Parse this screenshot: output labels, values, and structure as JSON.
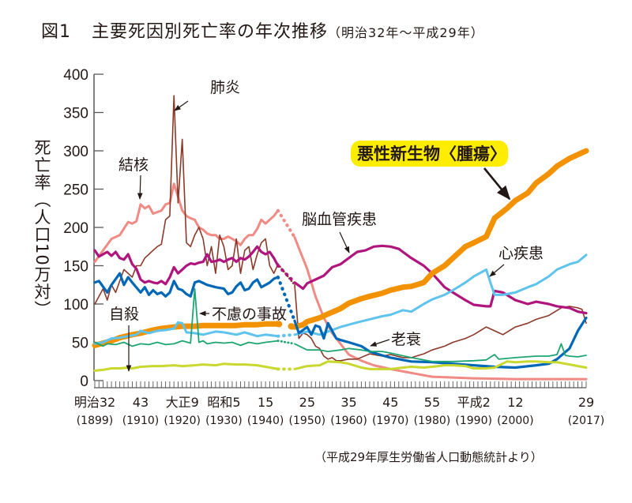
{
  "title": {
    "figure_no": "図1",
    "main": "主要死因別死亡率の年次推移",
    "period": "（明治32年〜平成29年）"
  },
  "source": "（平成29年厚生労働省人口動態統計より）",
  "chart_data": {
    "type": "line",
    "title": "主要死因別死亡率の年次推移（明治32年〜平成29年）",
    "xlabel": "",
    "ylabel": "死亡率（人口10万対）",
    "xlim": [
      1899,
      2017
    ],
    "ylim": [
      0,
      400
    ],
    "yticks": [
      0,
      50,
      100,
      150,
      200,
      250,
      300,
      350,
      400
    ],
    "grid": false,
    "legend": "inline-annotations",
    "xticks": [
      {
        "year": 1899,
        "label": "明治32",
        "sub": "(1899)"
      },
      {
        "year": 1910,
        "label": "43",
        "sub": "(1910)"
      },
      {
        "year": 1920,
        "label": "大正9",
        "sub": "(1920)"
      },
      {
        "year": 1930,
        "label": "昭和5",
        "sub": "(1930)"
      },
      {
        "year": 1940,
        "label": "15",
        "sub": "(1940)"
      },
      {
        "year": 1950,
        "label": "25",
        "sub": "(1950)"
      },
      {
        "year": 1960,
        "label": "35",
        "sub": "(1960)"
      },
      {
        "year": 1970,
        "label": "45",
        "sub": "(1970)"
      },
      {
        "year": 1980,
        "label": "55",
        "sub": "(1980)"
      },
      {
        "year": 1990,
        "label": "平成2",
        "sub": "(1990)"
      },
      {
        "year": 2000,
        "label": "12",
        "sub": "(2000)"
      },
      {
        "year": 2017,
        "label": "29",
        "sub": "(2017)"
      }
    ],
    "gap_years": [
      1944,
      1946
    ],
    "series": [
      {
        "name": "結核",
        "color": "#f08a84",
        "width": 3,
        "x": [
          1899,
          1901,
          1903,
          1905,
          1907,
          1908,
          1909,
          1910,
          1911,
          1912,
          1913,
          1914,
          1915,
          1916,
          1917,
          1918,
          1919,
          1920,
          1921,
          1922,
          1923,
          1924,
          1925,
          1926,
          1927,
          1928,
          1929,
          1930,
          1931,
          1932,
          1933,
          1934,
          1935,
          1936,
          1937,
          1938,
          1939,
          1940,
          1941,
          1942,
          1943,
          1947,
          1948,
          1950,
          1952,
          1954,
          1956,
          1958,
          1960,
          1963,
          1966,
          1970,
          1975,
          1980,
          1985,
          1990,
          2000,
          2010,
          2017
        ],
        "y": [
          155,
          170,
          185,
          190,
          207,
          205,
          208,
          230,
          225,
          228,
          218,
          220,
          222,
          230,
          232,
          257,
          240,
          222,
          215,
          212,
          210,
          200,
          197,
          192,
          190,
          190,
          185,
          185,
          188,
          185,
          182,
          177,
          185,
          190,
          190,
          198,
          210,
          205,
          210,
          215,
          222,
          187,
          173,
          146,
          110,
          82,
          62,
          48,
          34,
          26,
          20,
          15,
          10,
          5,
          4,
          3,
          2,
          2,
          2
        ]
      },
      {
        "name": "肺炎",
        "color": "#8b3a2a",
        "width": 1.6,
        "x": [
          1899,
          1900,
          1901,
          1902,
          1903,
          1904,
          1905,
          1906,
          1907,
          1908,
          1909,
          1910,
          1911,
          1912,
          1913,
          1914,
          1915,
          1916,
          1917,
          1918,
          1919,
          1920,
          1921,
          1922,
          1923,
          1924,
          1925,
          1926,
          1927,
          1928,
          1929,
          1930,
          1931,
          1932,
          1933,
          1934,
          1935,
          1936,
          1937,
          1938,
          1939,
          1940,
          1941,
          1942,
          1943,
          1947,
          1948,
          1949,
          1950,
          1951,
          1952,
          1953,
          1954,
          1955,
          1956,
          1957,
          1958,
          1960,
          1962,
          1965,
          1968,
          1970,
          1973,
          1975,
          1978,
          1980,
          1983,
          1985,
          1988,
          1990,
          1993,
          1995,
          1997,
          2000,
          2003,
          2005,
          2008,
          2011,
          2013,
          2015,
          2016,
          2017
        ],
        "y": [
          100,
          110,
          120,
          105,
          125,
          115,
          130,
          145,
          140,
          135,
          150,
          150,
          160,
          165,
          170,
          175,
          178,
          210,
          215,
          372,
          232,
          315,
          180,
          175,
          190,
          200,
          185,
          150,
          175,
          140,
          190,
          175,
          145,
          150,
          185,
          140,
          170,
          175,
          145,
          165,
          180,
          185,
          150,
          140,
          152,
          125,
          55,
          62,
          60,
          55,
          45,
          42,
          32,
          28,
          30,
          26,
          26,
          28,
          28,
          35,
          32,
          34,
          30,
          30,
          35,
          40,
          45,
          50,
          55,
          60,
          70,
          65,
          60,
          70,
          75,
          80,
          85,
          95,
          97,
          95,
          93,
          75
        ]
      },
      {
        "name": "脳血管疾患",
        "color": "#b0157e",
        "width": 3.2,
        "x": [
          1899,
          1900,
          1902,
          1903,
          1904,
          1905,
          1906,
          1907,
          1908,
          1909,
          1910,
          1911,
          1912,
          1913,
          1914,
          1915,
          1916,
          1917,
          1918,
          1919,
          1920,
          1921,
          1922,
          1923,
          1924,
          1925,
          1926,
          1927,
          1928,
          1929,
          1930,
          1931,
          1932,
          1933,
          1934,
          1935,
          1936,
          1937,
          1938,
          1939,
          1940,
          1941,
          1942,
          1943,
          1947,
          1949,
          1950,
          1952,
          1954,
          1956,
          1958,
          1960,
          1962,
          1964,
          1966,
          1968,
          1970,
          1972,
          1975,
          1978,
          1980,
          1983,
          1985,
          1988,
          1990,
          1993,
          1994,
          1995,
          1997,
          2000,
          2003,
          2005,
          2008,
          2010,
          2013,
          2015,
          2017
        ],
        "y": [
          170,
          162,
          168,
          163,
          168,
          160,
          158,
          165,
          152,
          146,
          132,
          128,
          130,
          128,
          127,
          130,
          126,
          135,
          148,
          140,
          145,
          150,
          153,
          152,
          154,
          155,
          165,
          155,
          156,
          158,
          155,
          158,
          160,
          155,
          160,
          158,
          162,
          168,
          175,
          168,
          165,
          168,
          160,
          150,
          128,
          120,
          127,
          132,
          137,
          148,
          152,
          160,
          168,
          170,
          175,
          176,
          175,
          172,
          160,
          150,
          140,
          122,
          115,
          105,
          99,
          97,
          97,
          117,
          115,
          105,
          100,
          103,
          100,
          97,
          95,
          90,
          88
        ]
      },
      {
        "name": "悪性新生物〈腫瘍〉",
        "color": "#f39200",
        "width": 7,
        "x": [
          1899,
          1903,
          1905,
          1908,
          1910,
          1913,
          1915,
          1918,
          1920,
          1923,
          1925,
          1928,
          1930,
          1933,
          1935,
          1938,
          1940,
          1943,
          1947,
          1949,
          1950,
          1953,
          1955,
          1958,
          1960,
          1963,
          1965,
          1968,
          1970,
          1973,
          1975,
          1978,
          1980,
          1983,
          1985,
          1988,
          1990,
          1993,
          1995,
          1998,
          2000,
          2003,
          2005,
          2008,
          2010,
          2013,
          2015,
          2017
        ],
        "y": [
          46,
          52,
          56,
          60,
          62,
          66,
          68,
          70,
          71,
          71,
          72,
          72,
          72,
          72,
          73,
          73,
          74,
          74,
          70,
          73,
          77,
          82,
          87,
          94,
          101,
          107,
          110,
          114,
          118,
          122,
          123,
          128,
          140,
          150,
          160,
          175,
          180,
          188,
          212,
          225,
          235,
          245,
          258,
          270,
          280,
          290,
          295,
          300
        ]
      },
      {
        "name": "心疾患",
        "color": "#5ec3ed",
        "width": 3,
        "x": [
          1899,
          1901,
          1903,
          1905,
          1907,
          1909,
          1910,
          1912,
          1914,
          1916,
          1918,
          1919,
          1920,
          1921,
          1923,
          1925,
          1928,
          1930,
          1933,
          1935,
          1938,
          1940,
          1943,
          1947,
          1950,
          1953,
          1955,
          1958,
          1960,
          1962,
          1965,
          1968,
          1970,
          1973,
          1975,
          1978,
          1980,
          1983,
          1985,
          1988,
          1990,
          1993,
          1994,
          1995,
          1997,
          2000,
          2003,
          2005,
          2008,
          2010,
          2013,
          2015,
          2017
        ],
        "y": [
          48,
          50,
          55,
          56,
          58,
          60,
          65,
          62,
          65,
          66,
          68,
          76,
          75,
          63,
          62,
          60,
          64,
          63,
          60,
          63,
          58,
          60,
          58,
          60,
          64,
          60,
          64,
          70,
          73,
          76,
          80,
          84,
          86,
          92,
          90,
          100,
          106,
          112,
          118,
          128,
          136,
          145,
          128,
          112,
          112,
          115,
          122,
          126,
          136,
          145,
          152,
          155,
          164
        ]
      },
      {
        "name": "老衰",
        "color": "#0068b7",
        "width": 3.2,
        "x": [
          1899,
          1900,
          1902,
          1903,
          1905,
          1906,
          1907,
          1908,
          1910,
          1911,
          1912,
          1913,
          1914,
          1915,
          1916,
          1917,
          1918,
          1919,
          1920,
          1921,
          1922,
          1923,
          1924,
          1926,
          1928,
          1930,
          1931,
          1932,
          1933,
          1934,
          1935,
          1936,
          1937,
          1938,
          1939,
          1940,
          1941,
          1942,
          1943,
          1947,
          1948,
          1950,
          1951,
          1952,
          1953,
          1954,
          1955,
          1957,
          1958,
          1960,
          1963,
          1965,
          1968,
          1970,
          1975,
          1980,
          1985,
          1990,
          1995,
          2000,
          2005,
          2008,
          2010,
          2013,
          2015,
          2017
        ],
        "y": [
          128,
          130,
          115,
          125,
          140,
          125,
          135,
          128,
          115,
          122,
          112,
          118,
          113,
          115,
          110,
          115,
          130,
          120,
          118,
          113,
          110,
          128,
          130,
          125,
          122,
          120,
          113,
          115,
          123,
          128,
          118,
          120,
          128,
          132,
          122,
          125,
          128,
          133,
          135,
          78,
          62,
          70,
          60,
          72,
          70,
          55,
          75,
          55,
          53,
          50,
          45,
          38,
          33,
          30,
          25,
          24,
          22,
          20,
          18,
          17,
          20,
          22,
          28,
          42,
          65,
          82
        ]
      },
      {
        "name": "不慮の事故",
        "color": "#1ea672",
        "width": 1.8,
        "x": [
          1899,
          1901,
          1902,
          1904,
          1906,
          1908,
          1910,
          1912,
          1914,
          1916,
          1918,
          1920,
          1922,
          1923,
          1924,
          1925,
          1926,
          1928,
          1930,
          1932,
          1934,
          1936,
          1938,
          1940,
          1943,
          1947,
          1950,
          1953,
          1955,
          1958,
          1960,
          1963,
          1965,
          1968,
          1970,
          1975,
          1980,
          1985,
          1990,
          1993,
          1995,
          1996,
          2000,
          2005,
          2008,
          2010,
          2011,
          2012,
          2013,
          2015,
          2017
        ],
        "y": [
          50,
          45,
          48,
          47,
          50,
          45,
          48,
          47,
          50,
          47,
          48,
          52,
          49,
          120,
          50,
          52,
          48,
          50,
          49,
          50,
          46,
          50,
          48,
          50,
          52,
          48,
          40,
          40,
          38,
          40,
          42,
          40,
          38,
          38,
          36,
          30,
          25,
          25,
          26,
          27,
          34,
          28,
          30,
          32,
          32,
          34,
          48,
          33,
          32,
          31,
          33
        ]
      },
      {
        "name": "自殺",
        "color": "#c8d82e",
        "width": 3,
        "x": [
          1899,
          1901,
          1903,
          1905,
          1907,
          1908,
          1910,
          1913,
          1915,
          1918,
          1920,
          1923,
          1925,
          1928,
          1930,
          1933,
          1935,
          1938,
          1940,
          1943,
          1947,
          1950,
          1953,
          1955,
          1958,
          1960,
          1963,
          1965,
          1968,
          1970,
          1973,
          1975,
          1978,
          1980,
          1983,
          1985,
          1988,
          1990,
          1993,
          1995,
          1998,
          2000,
          2003,
          2005,
          2008,
          2010,
          2013,
          2015,
          2017
        ],
        "y": [
          13,
          14,
          16,
          16,
          17,
          16,
          18,
          19,
          19,
          20,
          19,
          20,
          21,
          20,
          22,
          21,
          21,
          20,
          18,
          15,
          15,
          19,
          20,
          25,
          24,
          22,
          17,
          15,
          15,
          15,
          17,
          18,
          17,
          18,
          20,
          20,
          19,
          16,
          16,
          17,
          25,
          24,
          25,
          25,
          24,
          24,
          21,
          19,
          17
        ]
      }
    ],
    "annotations": [
      {
        "text": "肺炎",
        "target": "肺炎",
        "x_year": 1918
      },
      {
        "text": "結核",
        "target": "結核",
        "x_year": 1912
      },
      {
        "text": "脳血管疾患",
        "target": "脳血管疾患",
        "x_year": 1963
      },
      {
        "text": "悪性新生物〈腫瘍〉",
        "target": "悪性新生物〈腫瘍〉",
        "highlight": "#ffed00",
        "x_year": 1996
      },
      {
        "text": "心疾患",
        "target": "心疾患",
        "x_year": 1993
      },
      {
        "text": "不慮の事故",
        "target": "不慮の事故",
        "x_year": 1923
      },
      {
        "text": "自殺",
        "target": "自殺",
        "x_year": 1907
      },
      {
        "text": "老衰",
        "target": "老衰",
        "x_year": 1965
      }
    ]
  }
}
